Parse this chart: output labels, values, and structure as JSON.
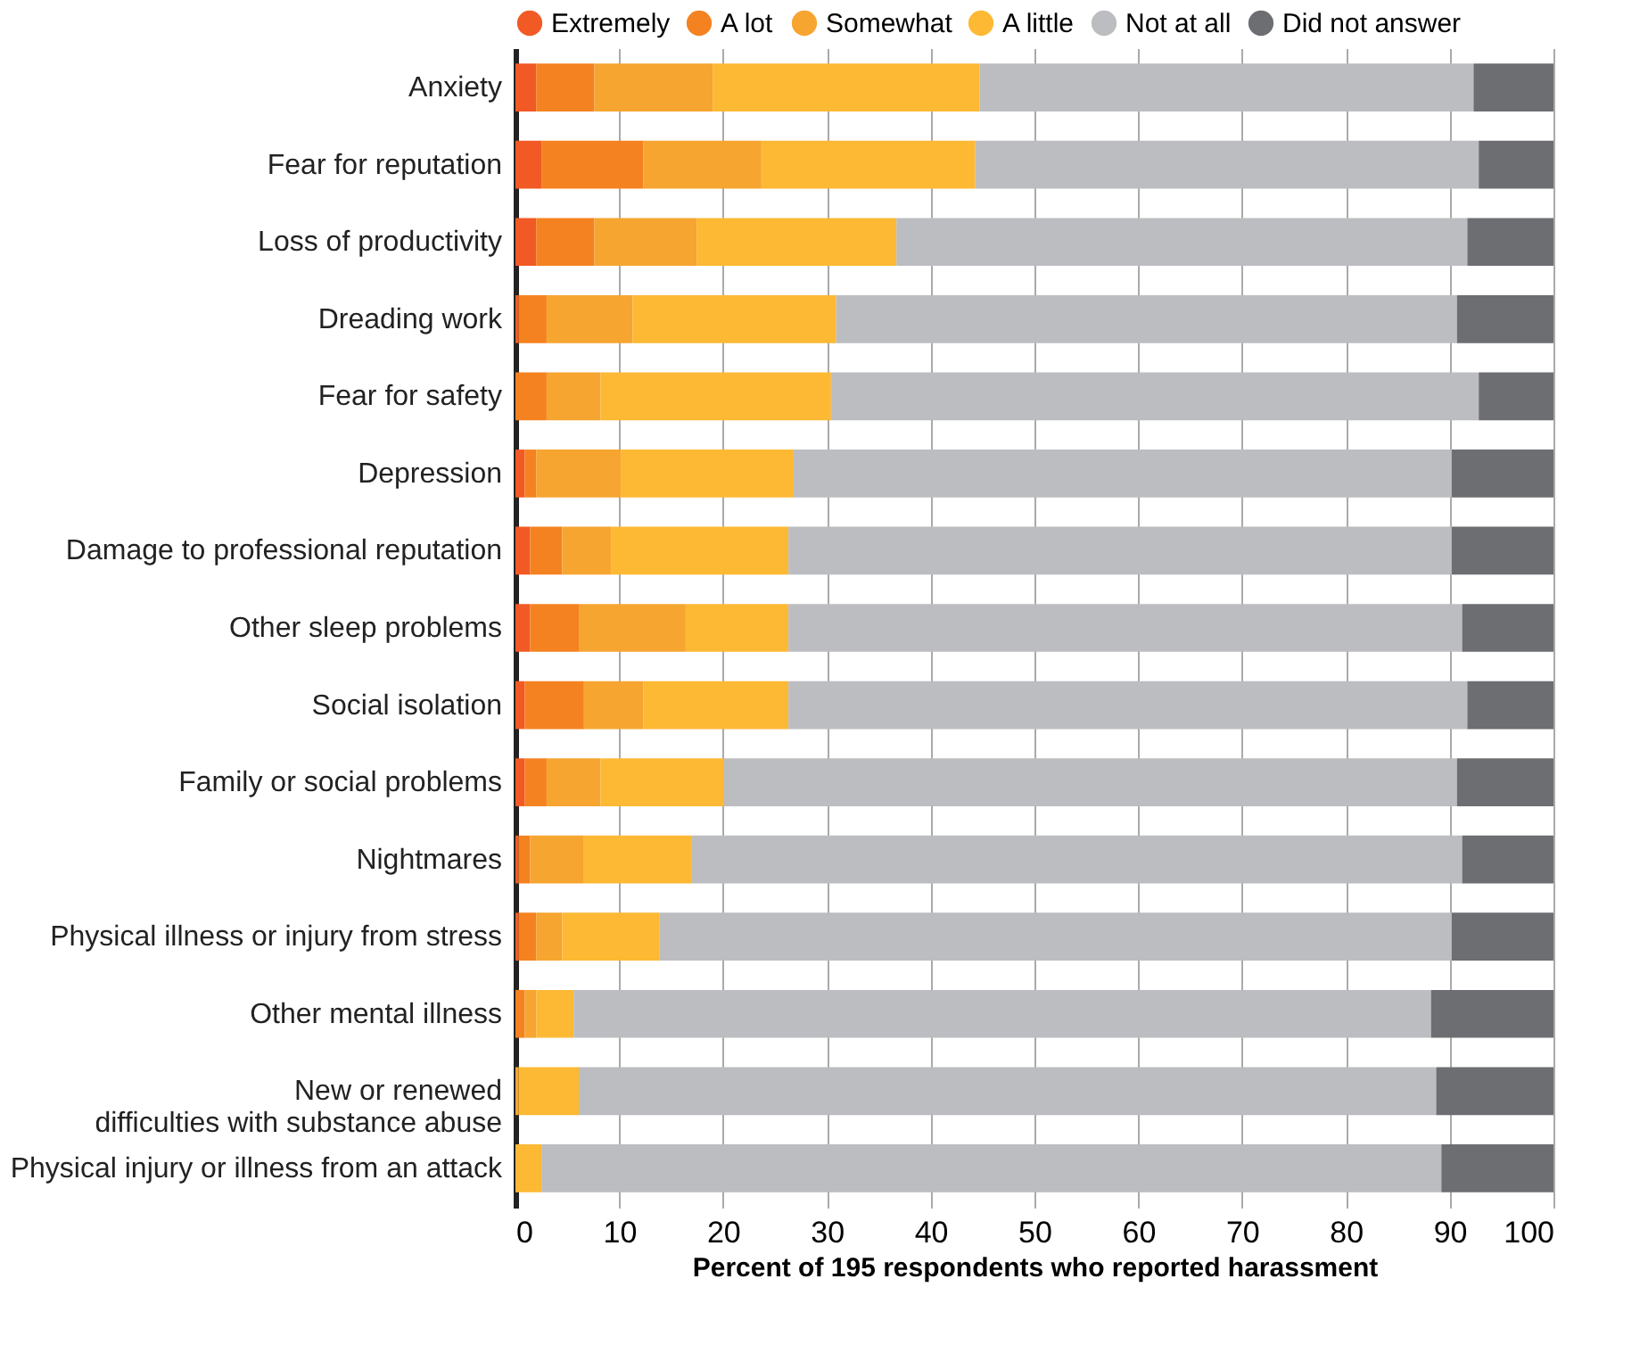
{
  "chart_data": {
    "type": "bar",
    "orientation": "horizontal",
    "stacked": true,
    "categories": [
      "Anxiety",
      "Fear for reputation",
      "Loss of productivity",
      "Dreading work",
      "Fear for safety",
      "Depression",
      "Damage to professional reputation",
      "Other sleep problems",
      "Social isolation",
      "Family or social problems",
      "Nightmares",
      "Physical illness or injury from stress",
      "Other mental illness",
      "New or renewed\ndifficulties with substance abuse",
      "Physical injury or illness from an attack"
    ],
    "series": [
      {
        "name": "Extremely",
        "color": "#f15a24",
        "values": [
          2.0,
          2.5,
          2.0,
          0.3,
          0,
          0.9,
          1.4,
          1.4,
          0.9,
          0.9,
          0.3,
          0.3,
          0,
          0,
          0
        ]
      },
      {
        "name": "A lot",
        "color": "#f58220",
        "values": [
          5.6,
          9.8,
          5.6,
          2.7,
          3.0,
          1.1,
          3.1,
          4.7,
          5.7,
          2.1,
          1.1,
          1.7,
          0.9,
          0,
          0
        ]
      },
      {
        "name": "Somewhat",
        "color": "#f6a530",
        "values": [
          11.4,
          11.4,
          9.9,
          8.3,
          5.2,
          8.2,
          4.7,
          10.3,
          5.7,
          5.2,
          5.2,
          2.5,
          1.1,
          0.3,
          0
        ]
      },
      {
        "name": "A little",
        "color": "#fdb934",
        "values": [
          25.7,
          20.6,
          19.2,
          19.6,
          22.2,
          16.6,
          17.1,
          9.9,
          14.0,
          11.9,
          10.4,
          9.4,
          3.6,
          5.8,
          2.5
        ]
      },
      {
        "name": "Not at all",
        "color": "#bcbdc1",
        "values": [
          47.6,
          48.5,
          55.0,
          59.8,
          62.4,
          63.4,
          63.9,
          64.9,
          65.4,
          70.6,
          74.2,
          76.3,
          82.6,
          82.6,
          86.7
        ]
      },
      {
        "name": "Did not answer",
        "color": "#6d6e72",
        "values": [
          7.7,
          7.2,
          8.3,
          9.3,
          7.2,
          9.8,
          9.8,
          8.8,
          8.3,
          9.3,
          8.8,
          9.8,
          11.8,
          11.3,
          10.8
        ]
      }
    ],
    "xlabel": "Percent of 195 respondents who reported harassment",
    "xlim": [
      0,
      100
    ],
    "xticks": [
      0,
      10,
      20,
      30,
      40,
      50,
      60,
      70,
      80,
      90,
      100
    ],
    "grid": "x",
    "legend": "top right",
    "marker": "circle"
  }
}
